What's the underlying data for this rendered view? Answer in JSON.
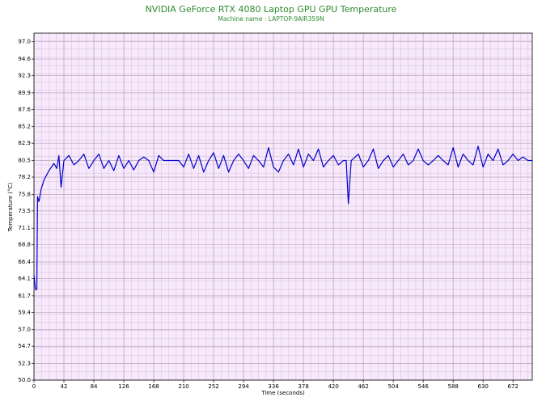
{
  "chart_data": {
    "type": "line",
    "title": "NVIDIA GeForce RTX 4080 Laptop GPU GPU Temperature",
    "subtitle": "Machine name : LAPTOP-9AIR359N",
    "x_label": "Time (seconds)",
    "y_label": "Temperature (°C)",
    "xlim": [
      0,
      699
    ],
    "ylim": [
      50,
      98.2
    ],
    "xticks": [
      0,
      42,
      84,
      126,
      168,
      210,
      252,
      294,
      336,
      378,
      420,
      462,
      504,
      546,
      588,
      630,
      672
    ],
    "yticks": [
      {
        "value": 50,
        "label": "50.0"
      },
      52.3,
      54.7,
      {
        "value": 57,
        "label": "57.0"
      },
      59.4,
      61.7,
      64.1,
      66.4,
      68.8,
      71.1,
      73.5,
      75.8,
      78.2,
      80.5,
      82.9,
      85.2,
      87.6,
      89.9,
      92.3,
      94.6,
      {
        "value": 97,
        "label": "97.0"
      }
    ],
    "grid": true,
    "series": [
      {
        "color": "#0000cc",
        "x": [
          0,
          2,
          4,
          5,
          7,
          10,
          14,
          21,
          28,
          32,
          35,
          38,
          42,
          49,
          56,
          63,
          70,
          77,
          84,
          91,
          98,
          105,
          112,
          119,
          126,
          133,
          140,
          147,
          154,
          161,
          168,
          175,
          182,
          189,
          196,
          203,
          210,
          217,
          224,
          231,
          238,
          245,
          252,
          259,
          266,
          273,
          280,
          287,
          294,
          301,
          308,
          315,
          322,
          329,
          336,
          343,
          350,
          357,
          364,
          371,
          378,
          385,
          392,
          399,
          406,
          413,
          420,
          427,
          434,
          438,
          441,
          445,
          455,
          462,
          469,
          476,
          483,
          490,
          497,
          504,
          511,
          518,
          525,
          532,
          539,
          546,
          553,
          560,
          567,
          574,
          581,
          588,
          595,
          602,
          609,
          616,
          623,
          630,
          637,
          644,
          651,
          658,
          665,
          672,
          679,
          686,
          693,
          699
        ],
        "values": [
          64.6,
          62.6,
          62.6,
          75.5,
          74.8,
          76.5,
          77.8,
          79.1,
          80.1,
          79.4,
          81.2,
          76.8,
          80.5,
          81.2,
          79.9,
          80.5,
          81.4,
          79.4,
          80.5,
          81.4,
          79.4,
          80.5,
          79.1,
          81.2,
          79.4,
          80.5,
          79.2,
          80.5,
          81.0,
          80.5,
          78.9,
          81.2,
          80.5,
          80.5,
          80.5,
          80.5,
          79.6,
          81.4,
          79.4,
          81.2,
          78.9,
          80.5,
          81.6,
          79.4,
          81.2,
          78.9,
          80.5,
          81.4,
          80.5,
          79.4,
          81.2,
          80.5,
          79.6,
          82.3,
          79.6,
          78.9,
          80.5,
          81.4,
          79.9,
          82.1,
          79.6,
          81.4,
          80.5,
          82.1,
          79.6,
          80.5,
          81.2,
          79.9,
          80.5,
          80.5,
          74.5,
          80.5,
          81.4,
          79.6,
          80.5,
          82.1,
          79.4,
          80.5,
          81.2,
          79.6,
          80.5,
          81.4,
          79.9,
          80.5,
          82.1,
          80.5,
          79.9,
          80.5,
          81.2,
          80.5,
          79.9,
          82.3,
          79.6,
          81.4,
          80.5,
          79.9,
          82.5,
          79.6,
          81.4,
          80.5,
          82.1,
          79.9,
          80.5,
          81.4,
          80.5,
          81.0,
          80.5,
          80.5
        ]
      }
    ]
  }
}
